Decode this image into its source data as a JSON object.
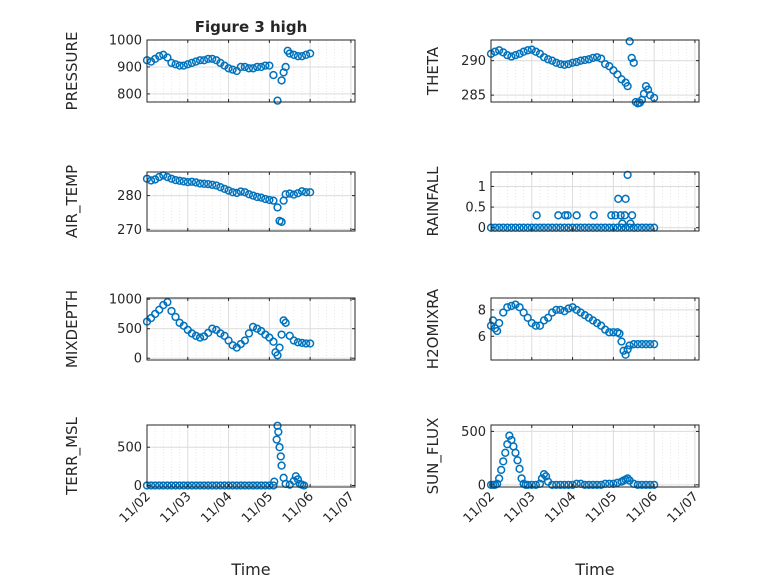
{
  "chart_data": [
    {
      "type": "scatter",
      "title": "Figure 3 high",
      "ylabel": "PRESSURE",
      "ylim": [
        770,
        1000
      ],
      "yticks": [
        800,
        900,
        1000
      ],
      "ytick_labels": [
        "800",
        "900",
        "1000"
      ],
      "grid": true,
      "x": [
        0.0,
        0.1,
        0.2,
        0.3,
        0.4,
        0.5,
        0.6,
        0.7,
        0.8,
        0.9,
        1.0,
        1.1,
        1.2,
        1.3,
        1.4,
        1.5,
        1.6,
        1.7,
        1.8,
        1.9,
        2.0,
        2.1,
        2.2,
        2.3,
        2.4,
        2.5,
        2.6,
        2.7,
        2.8,
        2.9,
        3.0,
        3.1,
        3.2,
        3.3,
        3.35,
        3.4,
        3.45,
        3.5,
        3.6,
        3.7,
        3.8,
        3.9,
        4.0
      ],
      "y": [
        925,
        920,
        930,
        940,
        945,
        935,
        915,
        910,
        905,
        905,
        910,
        915,
        920,
        925,
        925,
        930,
        930,
        925,
        915,
        905,
        895,
        890,
        885,
        900,
        900,
        895,
        895,
        900,
        900,
        905,
        905,
        870,
        775,
        850,
        880,
        900,
        960,
        950,
        945,
        940,
        940,
        945,
        950
      ]
    },
    {
      "type": "scatter",
      "ylabel": "THETA",
      "ylim": [
        284,
        293
      ],
      "yticks": [
        285,
        290
      ],
      "ytick_labels": [
        "285",
        "290"
      ],
      "grid": true,
      "x": [
        0.0,
        0.1,
        0.2,
        0.3,
        0.4,
        0.5,
        0.6,
        0.7,
        0.8,
        0.9,
        1.0,
        1.1,
        1.2,
        1.3,
        1.4,
        1.5,
        1.6,
        1.7,
        1.8,
        1.9,
        2.0,
        2.1,
        2.2,
        2.3,
        2.4,
        2.5,
        2.6,
        2.7,
        2.8,
        2.9,
        3.0,
        3.1,
        3.2,
        3.3,
        3.35,
        3.4,
        3.45,
        3.5,
        3.55,
        3.6,
        3.65,
        3.7,
        3.75,
        3.8,
        3.85,
        3.9,
        4.0
      ],
      "y": [
        291,
        291.3,
        291.5,
        291.2,
        290.8,
        290.6,
        290.8,
        291.0,
        291.3,
        291.5,
        291.6,
        291.3,
        291.0,
        290.5,
        290.2,
        290.0,
        289.7,
        289.5,
        289.4,
        289.5,
        289.7,
        289.8,
        290.0,
        290.1,
        290.2,
        290.4,
        290.5,
        290.3,
        289.5,
        289.2,
        288.6,
        288.0,
        287.3,
        286.8,
        286.3,
        292.8,
        290.4,
        289.7,
        284.0,
        283.8,
        283.9,
        284.3,
        285.2,
        286.3,
        285.8,
        285.0,
        284.6
      ]
    },
    {
      "type": "scatter",
      "ylabel": "AIR_TEMP",
      "ylim": [
        269.5,
        287
      ],
      "yticks": [
        270,
        280
      ],
      "ytick_labels": [
        "270",
        "280"
      ],
      "grid": true,
      "x": [
        0.0,
        0.1,
        0.2,
        0.3,
        0.4,
        0.5,
        0.6,
        0.7,
        0.8,
        0.9,
        1.0,
        1.1,
        1.2,
        1.3,
        1.4,
        1.5,
        1.6,
        1.7,
        1.8,
        1.9,
        2.0,
        2.1,
        2.2,
        2.3,
        2.4,
        2.5,
        2.6,
        2.7,
        2.8,
        2.9,
        3.0,
        3.1,
        3.2,
        3.25,
        3.3,
        3.35,
        3.4,
        3.5,
        3.6,
        3.7,
        3.8,
        3.9,
        4.0
      ],
      "y": [
        285,
        284.5,
        284.8,
        285.5,
        286,
        285.5,
        285,
        284.6,
        284.4,
        284.2,
        284.0,
        284.1,
        283.9,
        283.6,
        283.5,
        283.4,
        283.2,
        283.0,
        282.5,
        282.0,
        281.5,
        281.0,
        280.8,
        281.2,
        281.0,
        280.4,
        280.0,
        279.6,
        279.4,
        279.0,
        278.7,
        278.5,
        276.5,
        272.5,
        272.2,
        278.5,
        280.4,
        280.6,
        280.3,
        280.7,
        281.3,
        281.0,
        281.0
      ]
    },
    {
      "type": "scatter",
      "ylabel": "RAINFALL",
      "ylim": [
        -0.08,
        1.35
      ],
      "yticks": [
        0,
        0.5,
        1
      ],
      "ytick_labels": [
        "0",
        "0.5",
        "1"
      ],
      "grid": true,
      "x": [
        0.0,
        0.1,
        0.2,
        0.3,
        0.4,
        0.5,
        0.6,
        0.7,
        0.8,
        0.9,
        1.0,
        1.1,
        1.2,
        1.3,
        1.4,
        1.5,
        1.6,
        1.7,
        1.8,
        1.9,
        2.0,
        2.1,
        2.2,
        2.3,
        2.4,
        2.5,
        2.6,
        2.7,
        2.8,
        2.9,
        3.0,
        3.1,
        3.2,
        3.3,
        3.4,
        3.5,
        3.6,
        3.7,
        3.8,
        3.9,
        4.0,
        1.12,
        1.65,
        1.82,
        1.88,
        2.1,
        2.52,
        2.95,
        3.05,
        3.12,
        3.18,
        3.22,
        3.28,
        3.3,
        3.35,
        3.42,
        3.46
      ],
      "y": [
        0,
        0,
        0,
        0,
        0,
        0,
        0,
        0,
        0,
        0,
        0,
        0,
        0,
        0,
        0,
        0,
        0,
        0,
        0,
        0,
        0,
        0,
        0,
        0,
        0,
        0,
        0,
        0,
        0,
        0,
        0,
        0,
        0,
        0,
        0,
        0,
        0,
        0,
        0,
        0,
        0,
        0.3,
        0.3,
        0.3,
        0.3,
        0.3,
        0.3,
        0.3,
        0.3,
        0.7,
        0.3,
        0.1,
        0.3,
        0.7,
        1.28,
        0.1,
        0.3
      ]
    },
    {
      "type": "scatter",
      "ylabel": "MIXDEPTH",
      "ylim": [
        -30,
        1020
      ],
      "yticks": [
        0,
        500,
        1000
      ],
      "ytick_labels": [
        "0",
        "500",
        "1000"
      ],
      "grid": true,
      "x": [
        0.0,
        0.1,
        0.2,
        0.3,
        0.4,
        0.5,
        0.6,
        0.7,
        0.8,
        0.9,
        1.0,
        1.1,
        1.2,
        1.3,
        1.4,
        1.5,
        1.6,
        1.7,
        1.8,
        1.9,
        2.0,
        2.1,
        2.2,
        2.3,
        2.4,
        2.5,
        2.6,
        2.7,
        2.8,
        2.9,
        3.0,
        3.1,
        3.15,
        3.2,
        3.25,
        3.3,
        3.35,
        3.4,
        3.5,
        3.6,
        3.7,
        3.8,
        3.9,
        4.0
      ],
      "y": [
        620,
        680,
        750,
        820,
        900,
        950,
        800,
        700,
        600,
        550,
        480,
        420,
        380,
        350,
        370,
        430,
        500,
        480,
        420,
        380,
        300,
        220,
        180,
        240,
        300,
        420,
        530,
        500,
        460,
        400,
        350,
        280,
        100,
        50,
        180,
        400,
        640,
        600,
        380,
        300,
        270,
        260,
        250,
        250
      ]
    },
    {
      "type": "scatter",
      "ylabel": "H2OMIXRA",
      "ylim": [
        4.2,
        8.9
      ],
      "yticks": [
        6,
        8
      ],
      "ytick_labels": [
        "6",
        "8"
      ],
      "grid": true,
      "x": [
        0.0,
        0.05,
        0.1,
        0.15,
        0.2,
        0.3,
        0.4,
        0.5,
        0.6,
        0.7,
        0.8,
        0.9,
        1.0,
        1.1,
        1.2,
        1.3,
        1.4,
        1.5,
        1.6,
        1.7,
        1.8,
        1.9,
        2.0,
        2.1,
        2.2,
        2.3,
        2.4,
        2.5,
        2.6,
        2.7,
        2.8,
        2.9,
        3.0,
        3.1,
        3.15,
        3.2,
        3.25,
        3.3,
        3.35,
        3.4,
        3.5,
        3.6,
        3.7,
        3.8,
        3.9,
        4.0
      ],
      "y": [
        6.8,
        7.2,
        6.6,
        6.4,
        7.0,
        7.8,
        8.2,
        8.3,
        8.4,
        8.2,
        7.8,
        7.4,
        7.0,
        6.8,
        6.8,
        7.2,
        7.4,
        7.8,
        8.0,
        8.0,
        7.9,
        8.1,
        8.2,
        8.0,
        7.8,
        7.6,
        7.4,
        7.2,
        7.0,
        6.8,
        6.5,
        6.3,
        6.3,
        6.3,
        6.2,
        5.6,
        4.9,
        4.6,
        5.0,
        5.3,
        5.4,
        5.4,
        5.4,
        5.4,
        5.4,
        5.4
      ]
    },
    {
      "type": "scatter",
      "ylabel": "TERR_MSL",
      "ylim": [
        -20,
        790
      ],
      "yticks": [
        0,
        500
      ],
      "ytick_labels": [
        "0",
        "500"
      ],
      "grid": true,
      "x": [
        0.0,
        0.1,
        0.2,
        0.3,
        0.4,
        0.5,
        0.6,
        0.7,
        0.8,
        0.9,
        1.0,
        1.1,
        1.2,
        1.3,
        1.4,
        1.5,
        1.6,
        1.7,
        1.8,
        1.9,
        2.0,
        2.1,
        2.2,
        2.3,
        2.4,
        2.5,
        2.6,
        2.7,
        2.8,
        2.9,
        3.0,
        3.1,
        3.12,
        3.18,
        3.2,
        3.22,
        3.25,
        3.28,
        3.3,
        3.35,
        3.4,
        3.5,
        3.6,
        3.65,
        3.7,
        3.75,
        3.8,
        3.85
      ],
      "y": [
        0,
        0,
        0,
        0,
        0,
        0,
        0,
        0,
        0,
        0,
        0,
        0,
        0,
        0,
        0,
        0,
        0,
        0,
        0,
        0,
        0,
        0,
        0,
        0,
        0,
        0,
        0,
        0,
        0,
        0,
        0,
        0,
        50,
        600,
        780,
        700,
        500,
        380,
        260,
        100,
        20,
        10,
        60,
        120,
        80,
        20,
        10,
        0
      ]
    },
    {
      "type": "scatter",
      "ylabel": "SUN_FLUX",
      "ylim": [
        -20,
        560
      ],
      "yticks": [
        0,
        500
      ],
      "ytick_labels": [
        "0",
        "500"
      ],
      "grid": true,
      "x": [
        0.0,
        0.05,
        0.1,
        0.15,
        0.2,
        0.25,
        0.3,
        0.35,
        0.4,
        0.45,
        0.5,
        0.55,
        0.6,
        0.65,
        0.7,
        0.75,
        0.8,
        0.85,
        0.9,
        1.0,
        1.1,
        1.2,
        1.25,
        1.3,
        1.35,
        1.4,
        1.5,
        1.6,
        1.7,
        1.8,
        1.9,
        2.0,
        2.1,
        2.2,
        2.3,
        2.4,
        2.5,
        2.6,
        2.7,
        2.8,
        2.9,
        3.0,
        3.1,
        3.2,
        3.25,
        3.3,
        3.35,
        3.4,
        3.5,
        3.6,
        3.7,
        3.8,
        3.9,
        4.0
      ],
      "y": [
        0,
        0,
        0,
        10,
        60,
        140,
        220,
        300,
        380,
        460,
        420,
        360,
        300,
        230,
        150,
        60,
        10,
        0,
        0,
        0,
        0,
        10,
        60,
        100,
        80,
        30,
        0,
        0,
        0,
        0,
        0,
        0,
        10,
        10,
        0,
        0,
        0,
        0,
        0,
        10,
        10,
        10,
        20,
        30,
        40,
        50,
        60,
        40,
        10,
        0,
        0,
        0,
        0,
        0
      ]
    }
  ],
  "xaxis": {
    "xlim": [
      0,
      5.1
    ],
    "ticks": [
      0,
      1,
      2,
      3,
      4,
      5
    ],
    "tick_labels": [
      "11/02",
      "11/03",
      "11/04",
      "11/05",
      "11/06",
      "11/07"
    ],
    "label": "Time"
  },
  "colors": {
    "marker": "#0072bd",
    "axes": "#262626",
    "grid": "#dcdcdc"
  }
}
